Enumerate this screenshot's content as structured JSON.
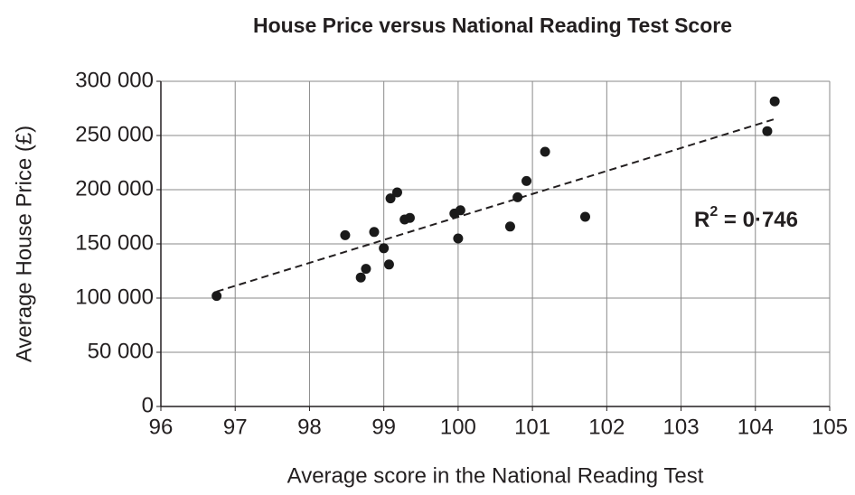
{
  "chart_data": {
    "type": "scatter",
    "title": "House Price versus National Reading Test Score",
    "xlabel": "Average score in the National Reading Test",
    "ylabel": "Average House Price (£)",
    "x": [
      96.75,
      98.48,
      98.69,
      98.76,
      98.87,
      99.0,
      99.07,
      99.09,
      99.18,
      99.28,
      99.35,
      99.95,
      100.03,
      100.0,
      100.7,
      100.8,
      100.92,
      101.17,
      101.71,
      104.16,
      104.26
    ],
    "values": [
      102000,
      158000,
      119000,
      127000,
      161000,
      146000,
      131000,
      192000,
      197500,
      172500,
      174000,
      178000,
      181000,
      155000,
      166000,
      193000,
      208000,
      235000,
      175000,
      254000,
      281500
    ],
    "color": "#1a1a1a",
    "trendline": {
      "x": [
        96.75,
        104.3
      ],
      "y": [
        106000,
        266000
      ]
    },
    "annotation": {
      "base": "R",
      "sup": "2",
      "rest": " = 0·746"
    },
    "xlim": [
      96,
      105
    ],
    "xticks": [
      96,
      97,
      98,
      99,
      100,
      101,
      102,
      103,
      104,
      105
    ],
    "ylim": [
      0,
      300000
    ],
    "yticks": [
      0,
      {
        "value": 50000,
        "label": "50 000"
      },
      {
        "value": 100000,
        "label": "100 000"
      },
      {
        "value": 150000,
        "label": "150 000"
      },
      {
        "value": 200000,
        "label": "200 000"
      },
      {
        "value": 250000,
        "label": "250 000"
      },
      {
        "value": 300000,
        "label": "300 000"
      }
    ],
    "grid": true
  }
}
